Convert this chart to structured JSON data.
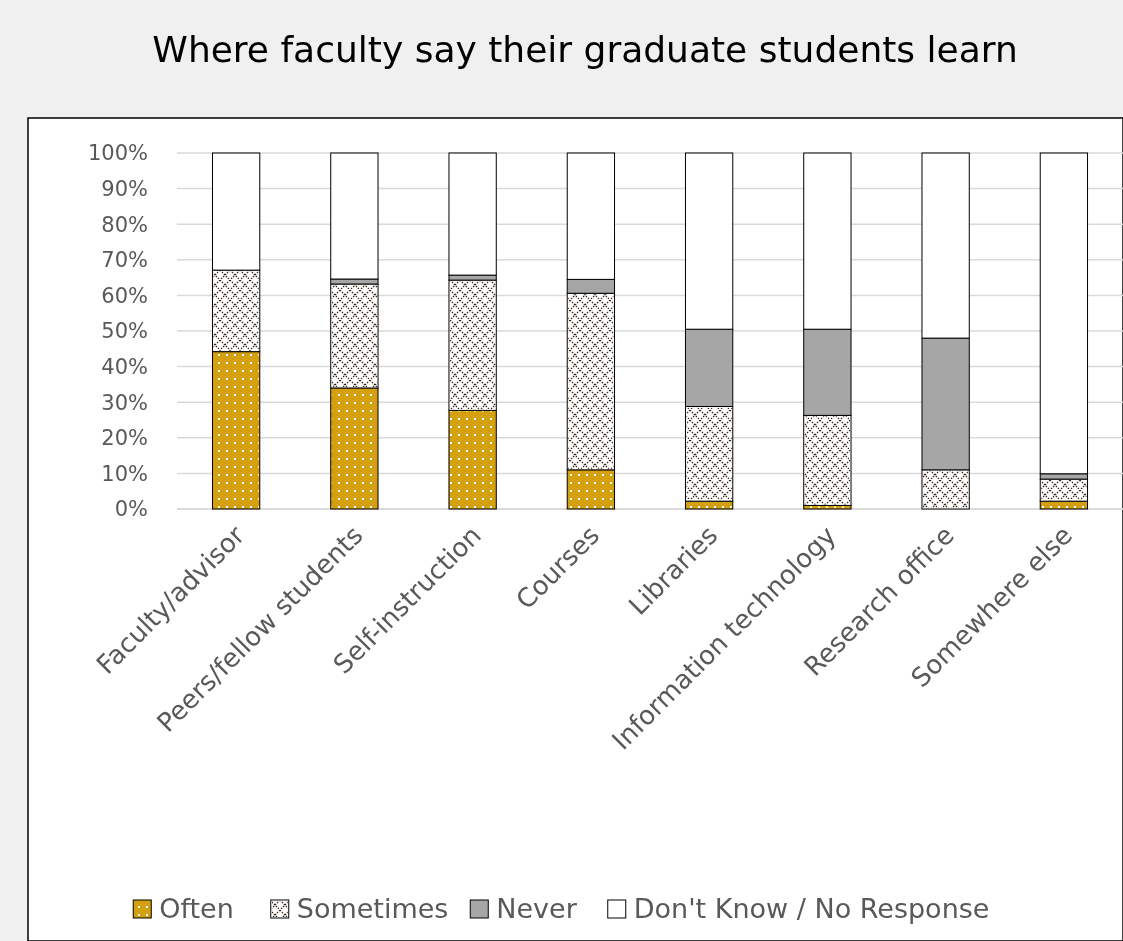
{
  "chart_data": {
    "type": "bar",
    "stacked": true,
    "title": "Where faculty say their graduate students learn",
    "categories": [
      "Faculty/advisor",
      "Peers/fellow students",
      "Self-instruction",
      "Courses",
      "Libraries",
      "Information technology",
      "Research office",
      "Somewhere else"
    ],
    "series": [
      {
        "name": "Often",
        "color": "#d4a00f",
        "values": [
          44.2,
          34.0,
          27.7,
          11.0,
          2.2,
          1.0,
          0,
          2.2
        ]
      },
      {
        "name": "Sometimes",
        "color": "#ffffff",
        "values": [
          22.9,
          29.2,
          36.6,
          49.6,
          26.6,
          25.3,
          11.0,
          6.2
        ]
      },
      {
        "name": "Never",
        "color": "#a6a6a6",
        "values": [
          0,
          1.4,
          1.4,
          3.9,
          21.7,
          24.2,
          37.0,
          1.5
        ]
      },
      {
        "name": "Don't Know / No Response",
        "color": "#ffffff",
        "values": [
          32.9,
          35.4,
          34.3,
          35.5,
          49.5,
          49.5,
          52.0,
          90.1
        ]
      }
    ],
    "ylim": [
      0,
      100
    ],
    "yticks": [
      {
        "value": 0,
        "label": "0%"
      },
      {
        "value": 10,
        "label": "10%"
      },
      {
        "value": 20,
        "label": "20%"
      },
      {
        "value": 30,
        "label": "30%"
      },
      {
        "value": 40,
        "label": "40%"
      },
      {
        "value": 50,
        "label": "50%"
      },
      {
        "value": 60,
        "label": "60%"
      },
      {
        "value": 70,
        "label": "70%"
      },
      {
        "value": 80,
        "label": "80%"
      },
      {
        "value": 90,
        "label": "90%"
      },
      {
        "value": 100,
        "label": "100%"
      }
    ],
    "grid": "y",
    "legend": "bottom"
  }
}
